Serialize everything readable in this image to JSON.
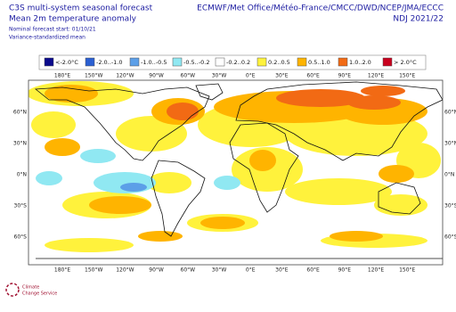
{
  "header": {
    "title": "C3S multi-system seasonal forecast",
    "subtitle": "Mean 2m temperature anomaly",
    "note1": "Nominal forecast start: 01/10/21",
    "note2": "Variance-standardized mean",
    "centres": "ECMWF/Met Office/Météo-France/CMCC/DWD/NCEP/JMA/ECCC",
    "period": "NDJ 2021/22"
  },
  "legend": [
    {
      "label": "<-2.0°C",
      "color": "#0a0a8c"
    },
    {
      "label": "-2.0..-1.0",
      "color": "#2a5fd2"
    },
    {
      "label": "-1.0..-0.5",
      "color": "#5c9fe8"
    },
    {
      "label": "-0.5..-0.2",
      "color": "#90e8f2"
    },
    {
      "label": "-0.2..0.2",
      "color": "#ffffff"
    },
    {
      "label": "0.2..0.5",
      "color": "#fff23c"
    },
    {
      "label": "0.5..1.0",
      "color": "#ffb400"
    },
    {
      "label": "1.0..2.0",
      "color": "#f26a14"
    },
    {
      "label": "> 2.0°C",
      "color": "#c8001e"
    }
  ],
  "lon_labels": [
    "180°E",
    "150°W",
    "120°W",
    "90°W",
    "60°W",
    "30°W",
    "0°E",
    "30°E",
    "60°E",
    "90°E",
    "120°E",
    "150°E"
  ],
  "lat_labels": [
    "60°N",
    "30°N",
    "0°N",
    "30°S",
    "60°S"
  ],
  "logo": {
    "line1": "Climate",
    "line2": "Change Service"
  }
}
